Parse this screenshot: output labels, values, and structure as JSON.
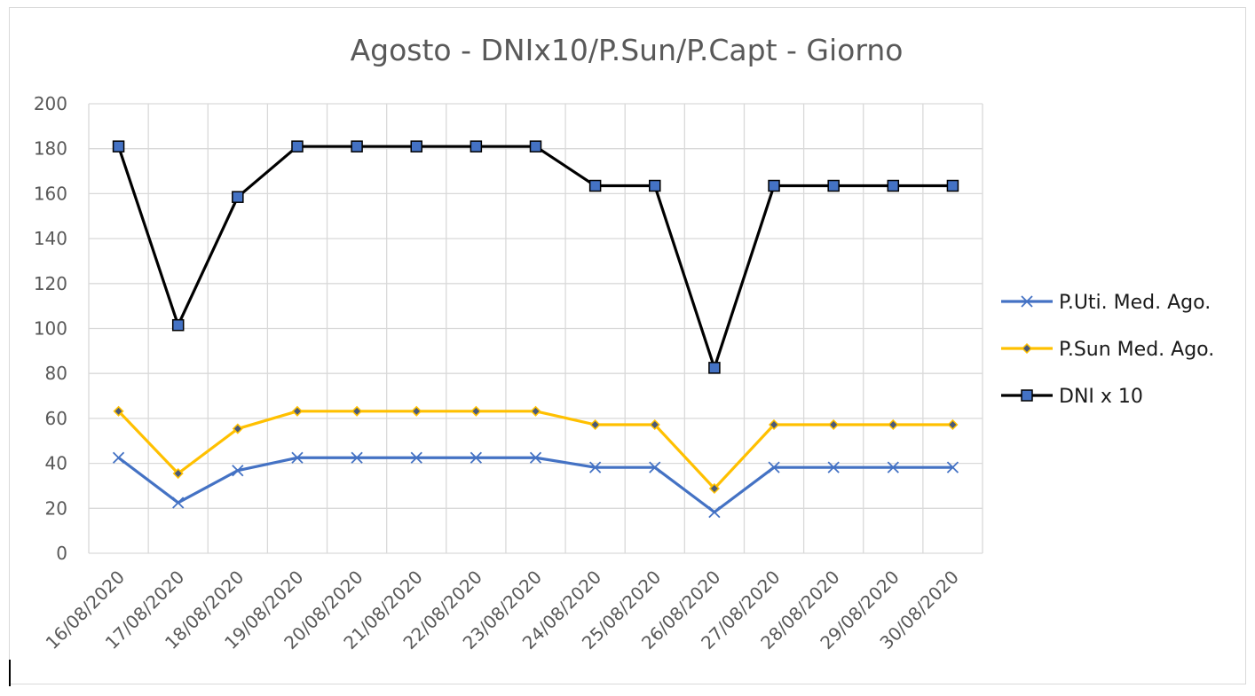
{
  "chart_data": {
    "type": "line",
    "title": "Agosto - DNIx10/P.Sun/P.Capt - Giorno",
    "xlabel": "",
    "ylabel": "",
    "categories": [
      "16/08/2020",
      "17/08/2020",
      "18/08/2020",
      "19/08/2020",
      "20/08/2020",
      "21/08/2020",
      "22/08/2020",
      "23/08/2020",
      "24/08/2020",
      "25/08/2020",
      "26/08/2020",
      "27/08/2020",
      "28/08/2020",
      "29/08/2020",
      "30/08/2020"
    ],
    "ylim": [
      0,
      200
    ],
    "yticks": [
      0,
      20,
      40,
      60,
      80,
      100,
      120,
      140,
      160,
      180,
      200
    ],
    "grid": true,
    "legend_position": "right",
    "series": [
      {
        "name": "P.Uti. Med. Ago.",
        "color": "#4472c4",
        "marker": "x",
        "values": [
          42.5,
          22.5,
          36.8,
          42.5,
          42.5,
          42.5,
          42.5,
          42.5,
          38.2,
          38.2,
          18.3,
          38.2,
          38.2,
          38.2,
          38.2
        ]
      },
      {
        "name": "P.Sun Med. Ago.",
        "color": "#ffc000",
        "marker": "diamond",
        "values": [
          63.2,
          35.5,
          55.4,
          63.2,
          63.2,
          63.2,
          63.2,
          63.2,
          57.2,
          57.2,
          28.8,
          57.2,
          57.2,
          57.2,
          57.2
        ]
      },
      {
        "name": "DNI x 10",
        "color": "#000000",
        "marker_fill": "#4472c4",
        "marker": "square",
        "values": [
          181,
          101.5,
          158.5,
          181,
          181,
          181,
          181,
          181,
          163.5,
          163.5,
          82.5,
          163.5,
          163.5,
          163.5,
          163.5
        ]
      }
    ]
  }
}
